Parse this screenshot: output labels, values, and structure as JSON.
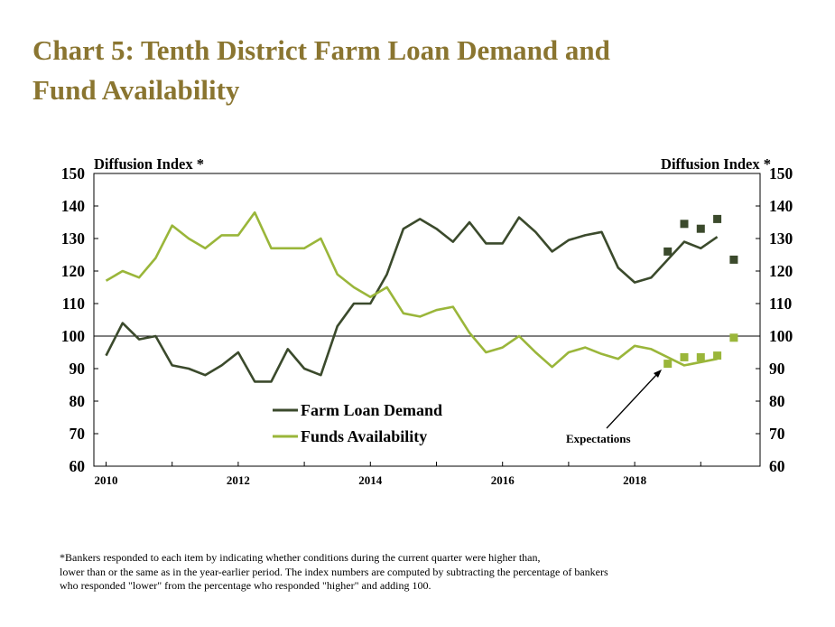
{
  "title_line1": "Chart 5: Tenth District Farm Loan Demand and",
  "title_line2": "Fund Availability",
  "colors": {
    "title": "#8a7530",
    "demand": "#3b4a2c",
    "funds": "#9ab63a"
  },
  "chart_data": {
    "type": "line",
    "y_axis_left_label": "Diffusion Index *",
    "y_axis_right_label": "Diffusion Index *",
    "ylim": [
      60,
      150
    ],
    "xlim": [
      2010,
      2019.8
    ],
    "y_ticks": [
      "60",
      "70",
      "80",
      "90",
      "100",
      "110",
      "120",
      "130",
      "140",
      "150"
    ],
    "x_ticks": [
      "2010",
      "2012",
      "2014",
      "2016",
      "2018"
    ],
    "reference_line": 100,
    "grid": false,
    "legend_position": "lower-left",
    "series": [
      {
        "name": "Farm Loan Demand",
        "color": "#3b4a2c",
        "x": [
          2010.0,
          2010.25,
          2010.5,
          2010.75,
          2011.0,
          2011.25,
          2011.5,
          2011.75,
          2012.0,
          2012.25,
          2012.5,
          2012.75,
          2013.0,
          2013.25,
          2013.5,
          2013.75,
          2014.0,
          2014.25,
          2014.5,
          2014.75,
          2015.0,
          2015.25,
          2015.5,
          2015.75,
          2016.0,
          2016.25,
          2016.5,
          2016.75,
          2017.0,
          2017.25,
          2017.5,
          2017.75,
          2018.0,
          2018.25,
          2018.5,
          2018.75,
          2019.0,
          2019.25
        ],
        "values": [
          94,
          104,
          99,
          100,
          91,
          90,
          88,
          91,
          95,
          86,
          86,
          96,
          90,
          88,
          103,
          110,
          110,
          119,
          133,
          136,
          133,
          129,
          135,
          128.5,
          128.5,
          136.5,
          132,
          126,
          129.5,
          131,
          132,
          121,
          116.5,
          118,
          123.5,
          129,
          127,
          130.5
        ]
      },
      {
        "name": "Funds Availability",
        "color": "#9ab63a",
        "x": [
          2010.0,
          2010.25,
          2010.5,
          2010.75,
          2011.0,
          2011.25,
          2011.5,
          2011.75,
          2012.0,
          2012.25,
          2012.5,
          2012.75,
          2013.0,
          2013.25,
          2013.5,
          2013.75,
          2014.0,
          2014.25,
          2014.5,
          2014.75,
          2015.0,
          2015.25,
          2015.5,
          2015.75,
          2016.0,
          2016.25,
          2016.5,
          2016.75,
          2017.0,
          2017.25,
          2017.5,
          2017.75,
          2018.0,
          2018.25,
          2018.5,
          2018.75,
          2019.0,
          2019.25
        ],
        "values": [
          117,
          120,
          118,
          124,
          134,
          130,
          127,
          131,
          131,
          138,
          127,
          127,
          127,
          130,
          119,
          115,
          112,
          115,
          107,
          106,
          108,
          109,
          101,
          95,
          96.5,
          100,
          95,
          90.5,
          95,
          96.5,
          94.5,
          93,
          97,
          96,
          93.5,
          91,
          92,
          93
        ]
      }
    ],
    "expectations": {
      "label": "Expectations",
      "demand": {
        "x": [
          2018.5,
          2018.75,
          2019.0,
          2019.25,
          2019.5
        ],
        "values": [
          126,
          134.5,
          133,
          136,
          123.5
        ]
      },
      "funds": {
        "x": [
          2018.5,
          2018.75,
          2019.0,
          2019.25,
          2019.5
        ],
        "values": [
          91.5,
          93.5,
          93.5,
          94,
          99.5
        ]
      }
    }
  },
  "footnote": [
    "*Bankers responded to each item by indicating whether conditions during the current quarter were higher than,",
    "lower than or the same as in the year-earlier period.  The index numbers are computed by subtracting the percentage of bankers",
    "who responded \"lower\" from the percentage who responded \"higher\" and adding 100."
  ]
}
